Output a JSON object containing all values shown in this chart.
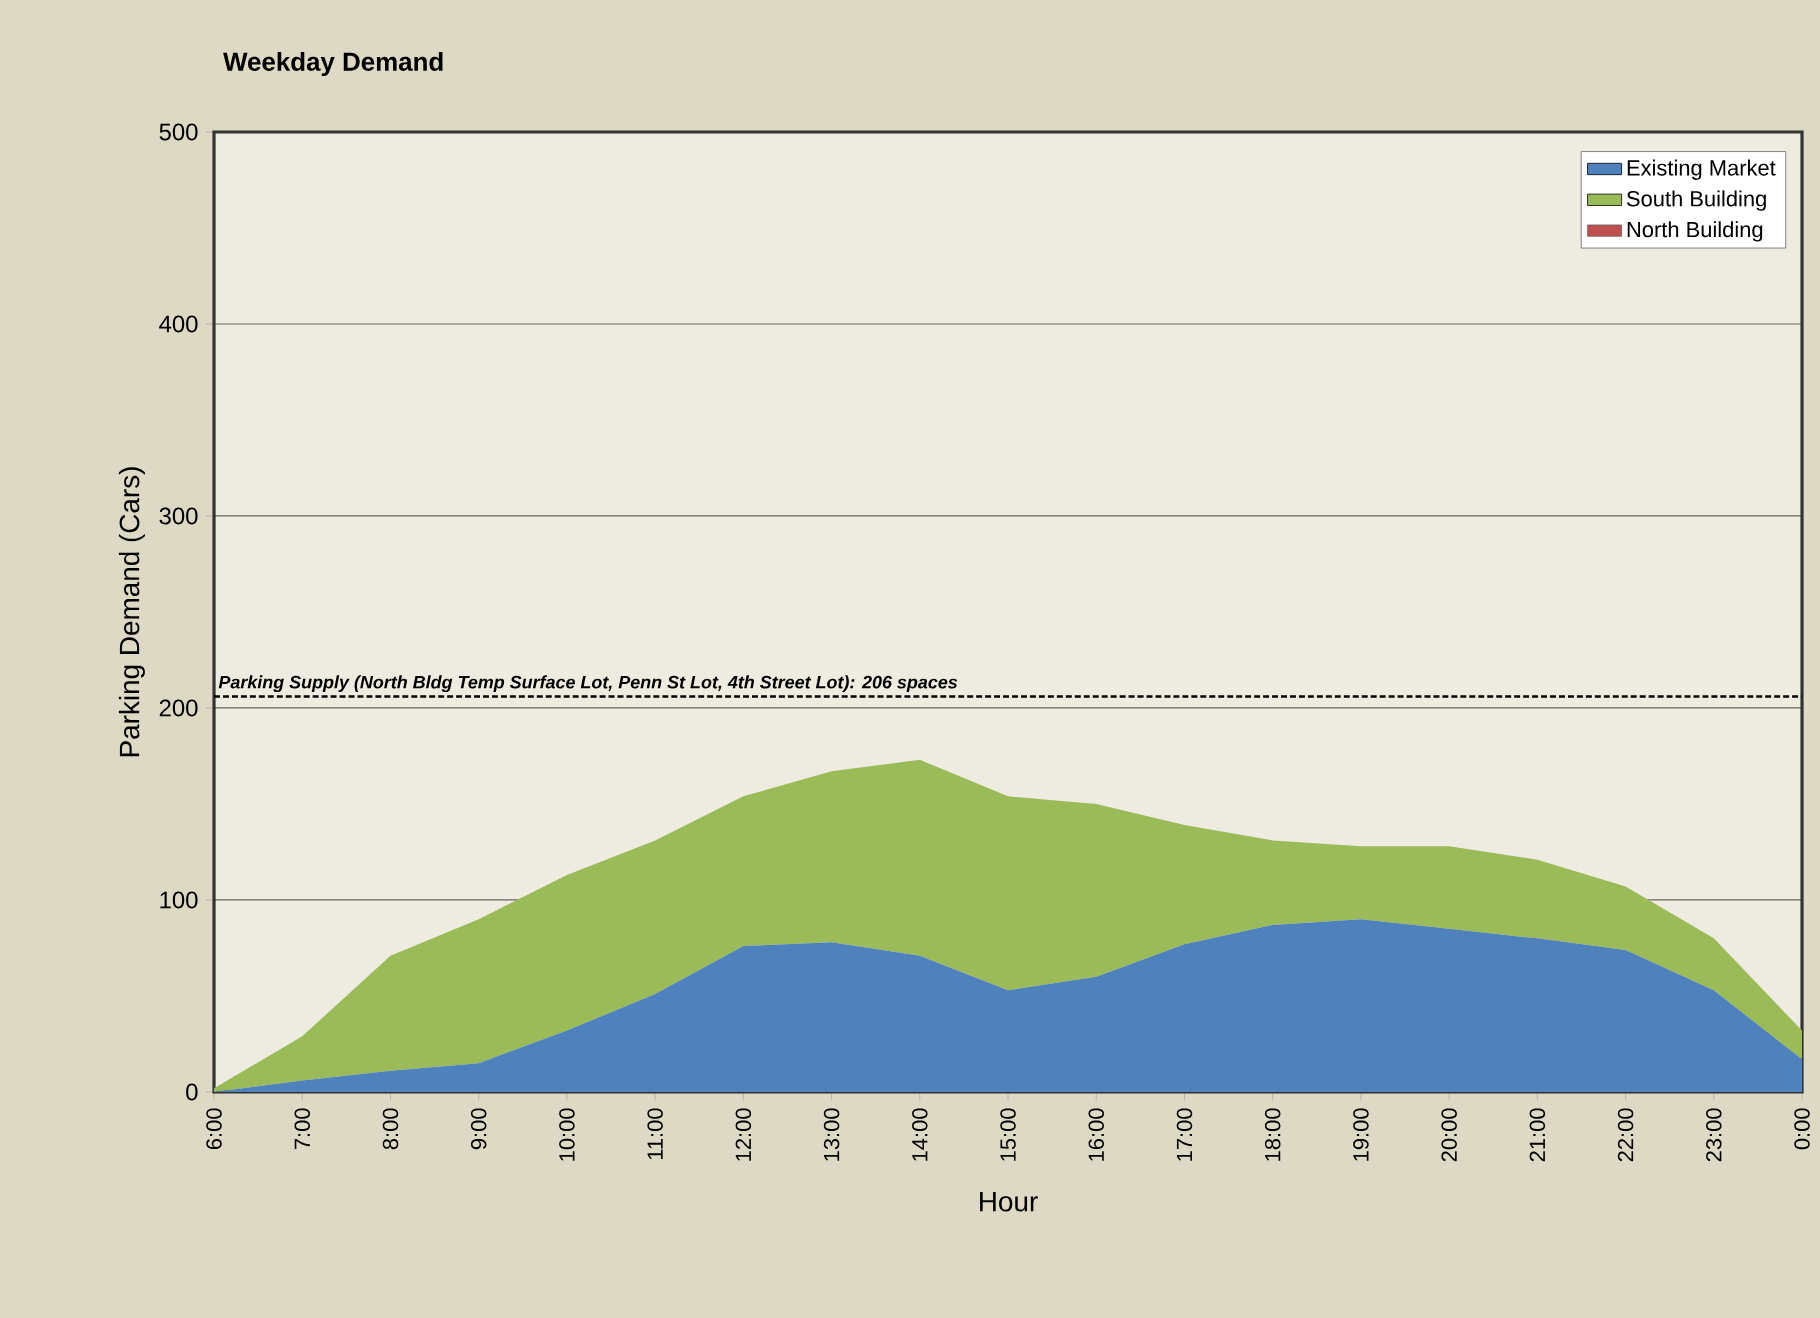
{
  "chart_data": {
    "type": "area",
    "title": "Weekday Demand",
    "xlabel": "Hour",
    "ylabel": "Parking Demand (Cars)",
    "categories": [
      "6:00",
      "7:00",
      "8:00",
      "9:00",
      "10:00",
      "11:00",
      "12:00",
      "13:00",
      "14:00",
      "15:00",
      "16:00",
      "17:00",
      "18:00",
      "19:00",
      "20:00",
      "21:00",
      "22:00",
      "23:00",
      "0:00"
    ],
    "stacked": true,
    "series": [
      {
        "name": "Existing Market",
        "color": "#4f81bd",
        "values": [
          0,
          6,
          11,
          15,
          32,
          51,
          76,
          78,
          71,
          53,
          60,
          77,
          87,
          90,
          85,
          80,
          74,
          53,
          17
        ]
      },
      {
        "name": "South Building",
        "color": "#9bbb59",
        "values": [
          2,
          23,
          60,
          75,
          81,
          80,
          78,
          89,
          102,
          101,
          90,
          62,
          44,
          38,
          43,
          41,
          33,
          27,
          15
        ]
      },
      {
        "name": "North Building",
        "color": "#c0504d",
        "values": [
          null,
          null,
          null,
          null,
          null,
          null,
          null,
          null,
          null,
          null,
          null,
          null,
          null,
          null,
          null,
          null,
          null,
          null,
          null
        ]
      }
    ],
    "ylim": [
      0,
      500
    ],
    "yticks": [
      0,
      100,
      200,
      300,
      400,
      500
    ],
    "grid": "y",
    "legend": "top right",
    "ref_lines": [
      {
        "axis": "y",
        "value": 206,
        "label": "Parking Supply (North Bldg Temp Surface Lot, Penn St Lot, 4th Street Lot): 206 spaces",
        "color": "#000000",
        "line_style": "dashed"
      }
    ]
  }
}
